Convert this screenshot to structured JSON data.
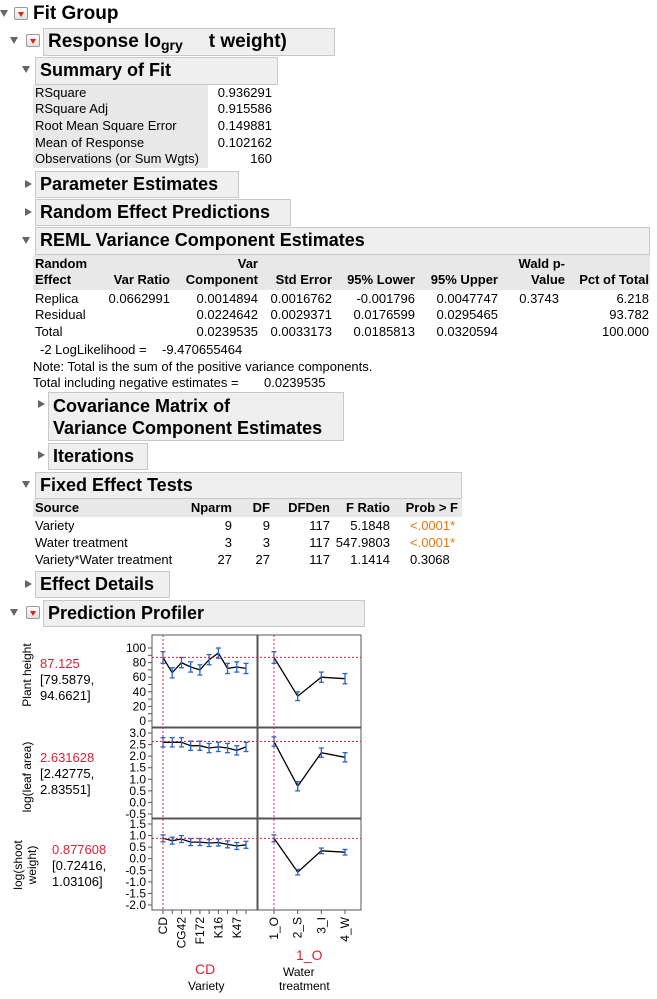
{
  "fit_group": {
    "title": "Fit Group"
  },
  "response": {
    "title": "Response lo",
    "overlap": "gry",
    "title_rest": "t weight)"
  },
  "summary_of_fit": {
    "title": "Summary of Fit",
    "rows": [
      {
        "label": "RSquare",
        "value": "0.936291"
      },
      {
        "label": "RSquare Adj",
        "value": "0.915586"
      },
      {
        "label": "Root Mean Square Error",
        "value": "0.149881"
      },
      {
        "label": "Mean of Response",
        "value": "0.102162"
      },
      {
        "label": "Observations (or Sum Wgts)",
        "value": "160"
      }
    ]
  },
  "parameter_estimates": {
    "title": "Parameter Estimates"
  },
  "random_effect_predictions": {
    "title": "Random Effect Predictions"
  },
  "reml": {
    "title": "REML Variance Component Estimates",
    "headers": {
      "random_effect": [
        "Random",
        "Effect"
      ],
      "var_ratio": "Var Ratio",
      "var_component": [
        "Var",
        "Component"
      ],
      "std_error": "Std Error",
      "lower": "95% Lower",
      "upper": "95% Upper",
      "wald": [
        "Wald p-",
        "Value"
      ],
      "pct": "Pct of Total"
    },
    "rows": [
      {
        "effect": "Replica",
        "var_ratio": "0.0662991",
        "var_component": "0.0014894",
        "std_error": "0.0016762",
        "lower": "-0.001796",
        "upper": "0.0047747",
        "wald": "0.3743",
        "pct": "6.218"
      },
      {
        "effect": "Residual",
        "var_ratio": "",
        "var_component": "0.0224642",
        "std_error": "0.0029371",
        "lower": "0.0176599",
        "upper": "0.0295465",
        "wald": "",
        "pct": "93.782"
      },
      {
        "effect": "Total",
        "var_ratio": "",
        "var_component": "0.0239535",
        "std_error": "0.0033173",
        "lower": "0.0185813",
        "upper": "0.0320594",
        "wald": "",
        "pct": "100.000"
      }
    ],
    "loglik_label": "-2 LogLikelihood =",
    "loglik_value": "-9.470655464",
    "note": "Note: Total is the sum of the positive variance components.",
    "neg_label": "Total including negative estimates =",
    "neg_value": "0.0239535"
  },
  "covariance": {
    "line1": "Covariance Matrix of",
    "line2": "Variance Component Estimates"
  },
  "iterations": {
    "title": "Iterations"
  },
  "fixed_effect_tests": {
    "title": "Fixed Effect Tests",
    "headers": {
      "source": "Source",
      "nparm": "Nparm",
      "df": "DF",
      "dfden": "DFDen",
      "fratio": "F Ratio",
      "prob": "Prob > F"
    },
    "rows": [
      {
        "source": "Variety",
        "nparm": "9",
        "df": "9",
        "dfden": "117",
        "fratio": "5.1848",
        "prob": "<.0001*"
      },
      {
        "source": "Water treatment",
        "nparm": "3",
        "df": "3",
        "dfden": "117",
        "fratio": "547.9803",
        "prob": "<.0001*"
      },
      {
        "source": "Variety*Water treatment",
        "nparm": "27",
        "df": "27",
        "dfden": "117",
        "fratio": "1.1414",
        "prob": "0.3068"
      }
    ]
  },
  "effect_details": {
    "title": "Effect Details"
  },
  "profiler": {
    "title": "Prediction Profiler",
    "responses": [
      {
        "name": "Plant height",
        "value": "87.125",
        "ci": "[79.5879,",
        "ci2": "94.6621]"
      },
      {
        "name": "log(leaf area)",
        "value": "2.631628",
        "ci": "[2.42775,",
        "ci2": "2.83551]"
      },
      {
        "name": "log(shoot weight)",
        "name_line1": "log(shoot",
        "name_line2": "weight)",
        "value": "0.877608",
        "ci": "[0.72416,",
        "ci2": "1.03106]"
      }
    ],
    "factors": [
      {
        "name": "Variety",
        "current": "CD",
        "ticks": [
          "CD",
          "CG42",
          "F172",
          "K16",
          "K47"
        ]
      },
      {
        "name": "Water treatment",
        "name_line1": "Water",
        "name_line2": "treatment",
        "current": "1_O",
        "ticks": [
          "1_O",
          "2_S",
          "3_I",
          "4_W"
        ]
      }
    ],
    "y_ticks": [
      [
        "100",
        "90",
        "80",
        "70",
        "60",
        "50",
        "40",
        "30",
        "20",
        "10",
        "0"
      ],
      [
        "3.0",
        "2.5",
        "2.0",
        "1.5",
        "1.0",
        "0.5",
        "0.0",
        "-0.5"
      ],
      [
        "1.5",
        "1.0",
        "0.5",
        "0.0",
        "-0.5",
        "-1.0",
        "-1.5",
        "-2.0"
      ]
    ],
    "y_labels_shown": [
      [
        "100",
        "80",
        "60",
        "40",
        "20",
        "0"
      ],
      [
        "3.0",
        "2.5",
        "2.0",
        "1.5",
        "1.0",
        "0.5",
        "0.0",
        "-0.5"
      ],
      [
        "1.5",
        "1.0",
        "0.5",
        "0.0",
        "-0.5",
        "-1.0",
        "-1.5",
        "-2.0"
      ]
    ],
    "curves": {
      "plant_variety": [
        [
          0,
          87,
          8
        ],
        [
          1,
          66,
          7
        ],
        [
          2,
          80,
          7
        ],
        [
          3,
          74,
          7
        ],
        [
          4,
          70,
          7
        ],
        [
          5,
          84,
          7
        ],
        [
          6,
          93,
          7
        ],
        [
          7,
          72,
          7
        ],
        [
          8,
          74,
          7
        ],
        [
          9,
          72,
          7
        ]
      ],
      "plant_water": [
        [
          0,
          87,
          8
        ],
        [
          1,
          34,
          6
        ],
        [
          2,
          60,
          7
        ],
        [
          3,
          58,
          7
        ]
      ],
      "leaf_variety": [
        [
          0,
          2.6,
          0.2
        ],
        [
          1,
          2.6,
          0.2
        ],
        [
          2,
          2.6,
          0.2
        ],
        [
          3,
          2.45,
          0.2
        ],
        [
          4,
          2.45,
          0.2
        ],
        [
          5,
          2.35,
          0.2
        ],
        [
          6,
          2.4,
          0.2
        ],
        [
          7,
          2.35,
          0.2
        ],
        [
          8,
          2.25,
          0.2
        ],
        [
          9,
          2.4,
          0.2
        ]
      ],
      "leaf_water": [
        [
          0,
          2.63,
          0.2
        ],
        [
          1,
          0.7,
          0.2
        ],
        [
          2,
          2.15,
          0.2
        ],
        [
          3,
          1.95,
          0.2
        ]
      ],
      "shoot_variety": [
        [
          0,
          0.88,
          0.15
        ],
        [
          1,
          0.78,
          0.15
        ],
        [
          2,
          0.85,
          0.15
        ],
        [
          3,
          0.72,
          0.15
        ],
        [
          4,
          0.72,
          0.15
        ],
        [
          5,
          0.68,
          0.15
        ],
        [
          6,
          0.7,
          0.15
        ],
        [
          7,
          0.62,
          0.15
        ],
        [
          8,
          0.55,
          0.15
        ],
        [
          9,
          0.6,
          0.15
        ]
      ],
      "shoot_water": [
        [
          0,
          0.88,
          0.15
        ],
        [
          1,
          -0.58,
          0.12
        ],
        [
          2,
          0.34,
          0.12
        ],
        [
          3,
          0.28,
          0.12
        ]
      ]
    },
    "colors": {
      "curve": "#000000",
      "errbar": "#2a64c8",
      "ref": "#d9233a",
      "value": "#d9233a"
    }
  }
}
